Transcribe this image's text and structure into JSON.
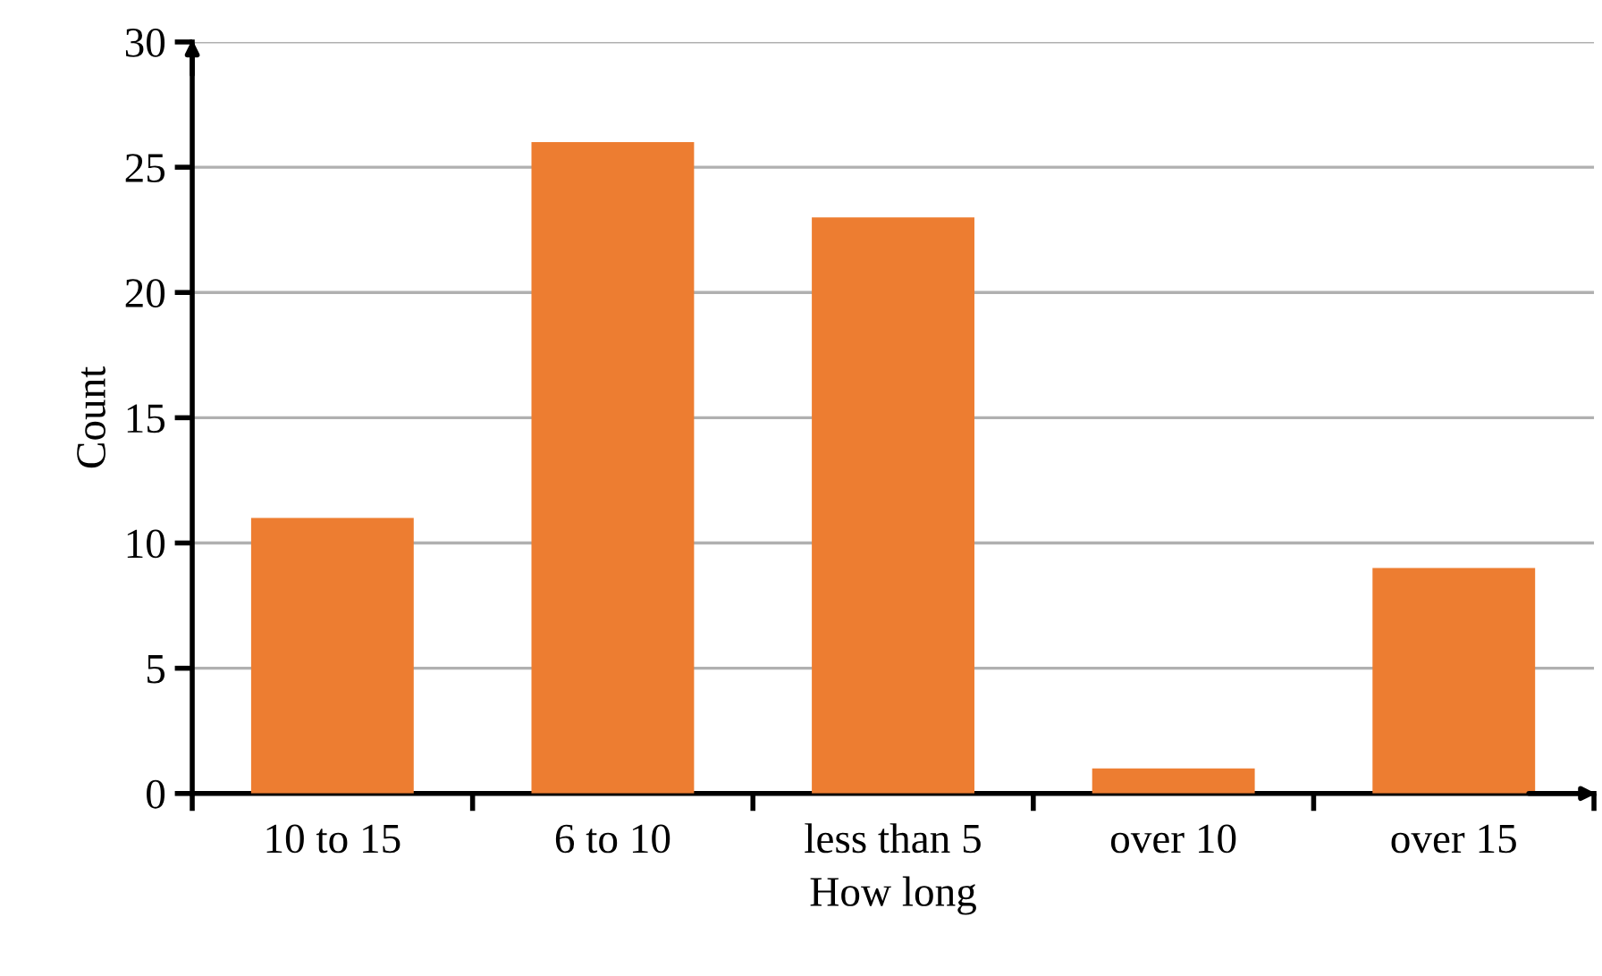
{
  "chart_data": {
    "type": "bar",
    "xlabel": "How long",
    "ylabel": "Count",
    "categories": [
      "10 to 15",
      "6 to 10",
      "less than 5",
      "over 10",
      "over 15"
    ],
    "values": [
      11,
      26,
      23,
      1,
      9
    ],
    "color": "#ed7d31",
    "ylim": [
      0,
      30
    ],
    "yticks": [
      0,
      5,
      10,
      15,
      20,
      25,
      30
    ],
    "grid": "y",
    "legend": false
  }
}
